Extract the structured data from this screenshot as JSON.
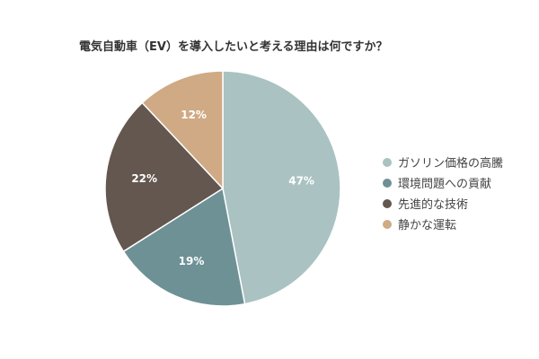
{
  "title": "電気自動車（EV）を導入したいと考える理由は何ですか？",
  "chart_data": {
    "type": "pie",
    "categories": [
      "ガソリン価格の高騰",
      "環境問題への貢献",
      "先進的な技術",
      "静かな運転"
    ],
    "values": [
      47,
      19,
      22,
      12
    ],
    "value_labels": [
      "47%",
      "19%",
      "22%",
      "12%"
    ],
    "colors": [
      "#aac2c2",
      "#6e9196",
      "#63574f",
      "#cfaa84"
    ],
    "legend_position": "right"
  }
}
